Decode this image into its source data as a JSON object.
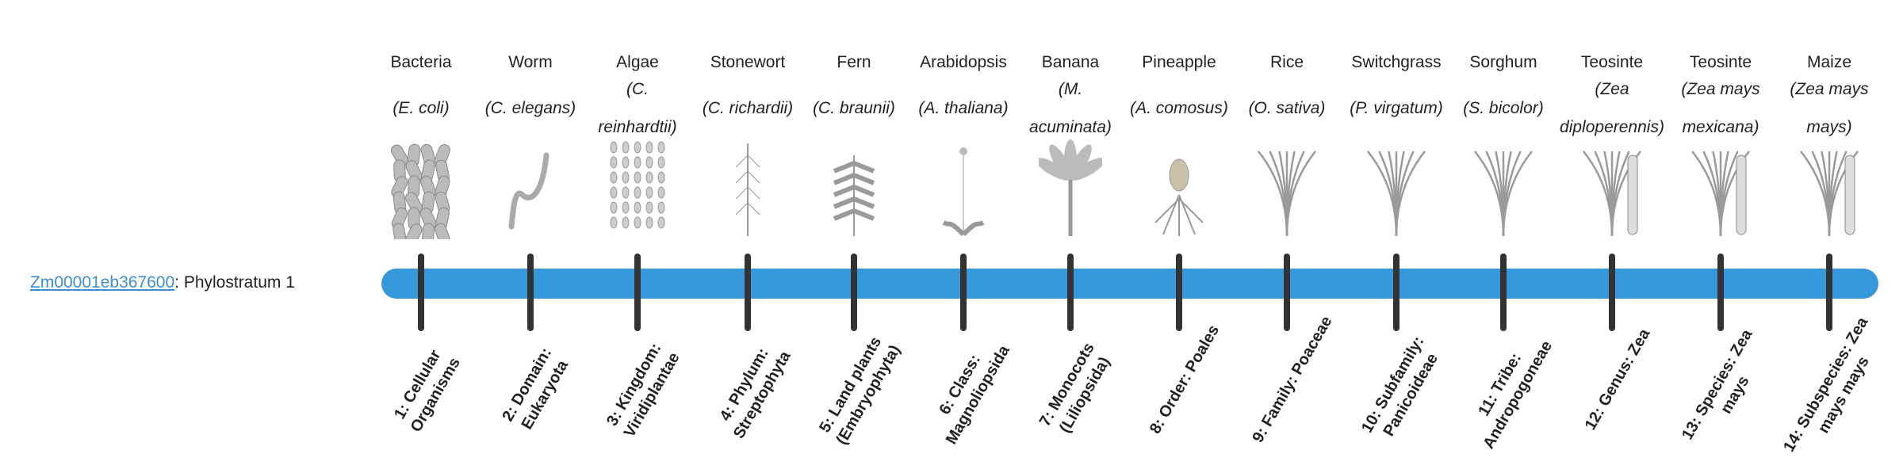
{
  "gene": {
    "id": "Zm00001eb367600",
    "suffix": ": Phylostratum 1"
  },
  "colors": {
    "bar": "#3598db",
    "tick": "#333333",
    "link": "#3a8fd6"
  },
  "columns": [
    {
      "name": "Bacteria",
      "species": "(E. coli)",
      "rank": "1: Cellular Organisms",
      "icon": "bacteria-illustration"
    },
    {
      "name": "Worm",
      "species": "(C. elegans)",
      "rank": "2: Domain: Eukaryota",
      "icon": "worm-illustration"
    },
    {
      "name": "Algae",
      "species": "(C. reinhardtii)",
      "rank": "3: Kingdom: Viridiplantae",
      "icon": "algae-illustration"
    },
    {
      "name": "Stonewort",
      "species": "(C. richardii)",
      "rank": "4: Phylum: Streptophyta",
      "icon": "stonewort-illustration"
    },
    {
      "name": "Fern",
      "species": "(C. braunii)",
      "rank": "5: Land plants (Embryophyta)",
      "icon": "fern-illustration"
    },
    {
      "name": "Arabidopsis",
      "species": "(A. thaliana)",
      "rank": "6: Class: Magnoliopsida",
      "icon": "arabidopsis-illustration"
    },
    {
      "name": "Banana",
      "species": "(M. acuminata)",
      "rank": "7: Monocots (Liliopsida)",
      "icon": "banana-illustration"
    },
    {
      "name": "Pineapple",
      "species": "(A. comosus)",
      "rank": "8: Order: Poales",
      "icon": "pineapple-illustration"
    },
    {
      "name": "Rice",
      "species": "(O. sativa)",
      "rank": "9: Family: Poaceae",
      "icon": "rice-illustration"
    },
    {
      "name": "Switchgrass",
      "species": "(P. virgatum)",
      "rank": "10: Subfamily: Panicoideae",
      "icon": "switchgrass-illustration"
    },
    {
      "name": "Sorghum",
      "species": "(S. bicolor)",
      "rank": "11: Tribe: Andropogoneae",
      "icon": "sorghum-illustration"
    },
    {
      "name": "Teosinte",
      "species": "(Zea diploperennis)",
      "rank": "12: Genus: Zea",
      "icon": "teosinte-illustration"
    },
    {
      "name": "Teosinte",
      "species": "(Zea mays mexicana)",
      "rank": "13: Species: Zea mays",
      "icon": "teosinte-illustration"
    },
    {
      "name": "Maize",
      "species": "(Zea mays mays)",
      "rank": "14: Subspecies: Zea mays mays",
      "icon": "maize-illustration"
    }
  ]
}
